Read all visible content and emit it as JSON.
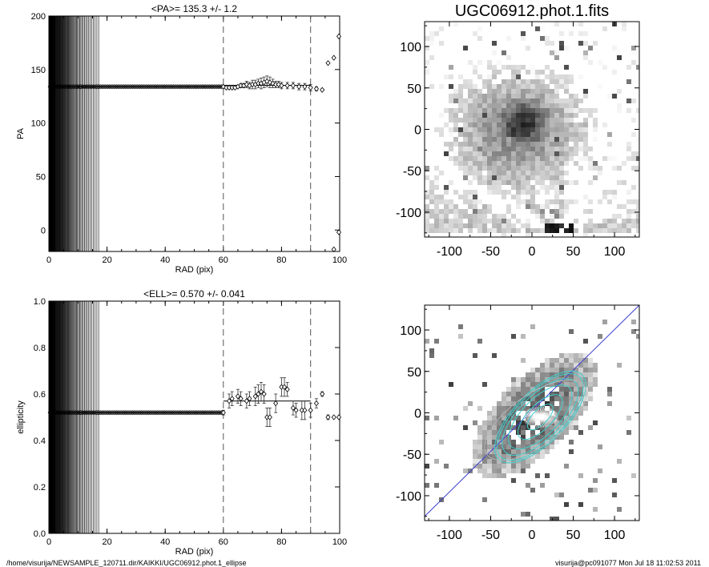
{
  "footer": {
    "path": "/home/visurija/NEWSAMPLE_120711.dir/KAIKKI/UGC06912.phot.1_ellipse",
    "user_stamp": "visurija@pc091077  Mon Jul 18 11:02:53 2011"
  },
  "chart_data": [
    {
      "id": "pa-profile",
      "type": "scatter",
      "title": "<PA>= 135.3 +/-   1.2",
      "xlabel": "RAD (pix)",
      "ylabel": "PA",
      "xlim": [
        0,
        100
      ],
      "ylim": [
        -20,
        200
      ],
      "xticks": [
        0,
        20,
        40,
        60,
        80,
        100
      ],
      "yticks": [
        0,
        50,
        100,
        150,
        200
      ],
      "mean_value": 135.3,
      "mean_line_x": [
        60,
        90
      ],
      "dashed_lines_x": [
        60,
        90
      ],
      "inner_constant": {
        "value": 134,
        "x_from": 0,
        "x_to": 60
      },
      "points": [
        {
          "x": 60,
          "y": 134,
          "err": 1
        },
        {
          "x": 61,
          "y": 133,
          "err": 1
        },
        {
          "x": 62,
          "y": 133,
          "err": 1
        },
        {
          "x": 63,
          "y": 133,
          "err": 1
        },
        {
          "x": 64,
          "y": 133,
          "err": 1
        },
        {
          "x": 65,
          "y": 134,
          "err": 1
        },
        {
          "x": 66,
          "y": 135,
          "err": 2
        },
        {
          "x": 67,
          "y": 135,
          "err": 2
        },
        {
          "x": 68,
          "y": 136,
          "err": 3
        },
        {
          "x": 69,
          "y": 135,
          "err": 3
        },
        {
          "x": 70,
          "y": 136,
          "err": 4
        },
        {
          "x": 71,
          "y": 136,
          "err": 4
        },
        {
          "x": 72,
          "y": 137,
          "err": 4
        },
        {
          "x": 73,
          "y": 137,
          "err": 5
        },
        {
          "x": 74,
          "y": 138,
          "err": 5
        },
        {
          "x": 75,
          "y": 139,
          "err": 5
        },
        {
          "x": 76,
          "y": 138,
          "err": 5
        },
        {
          "x": 77,
          "y": 137,
          "err": 4
        },
        {
          "x": 78,
          "y": 136,
          "err": 3
        },
        {
          "x": 79,
          "y": 136,
          "err": 3
        },
        {
          "x": 80,
          "y": 135,
          "err": 3
        },
        {
          "x": 82,
          "y": 135,
          "err": 3
        },
        {
          "x": 84,
          "y": 135,
          "err": 3
        },
        {
          "x": 86,
          "y": 134,
          "err": 3
        },
        {
          "x": 88,
          "y": 134,
          "err": 3
        },
        {
          "x": 90,
          "y": 133,
          "err": 3
        },
        {
          "x": 92,
          "y": 132,
          "err": 2
        },
        {
          "x": 94,
          "y": 131,
          "err": 1
        },
        {
          "x": 96,
          "y": 156,
          "err": 0
        },
        {
          "x": 98,
          "y": 161,
          "err": 0
        },
        {
          "x": 100,
          "y": 181,
          "err": 0
        },
        {
          "x": 98,
          "y": -18,
          "err": 0
        },
        {
          "x": 100,
          "y": -2,
          "err": 0
        }
      ]
    },
    {
      "id": "ellipticity-profile",
      "type": "scatter",
      "title": "<ELL>= 0.570 +/-  0.041",
      "xlabel": "RAD (pix)",
      "ylabel": "ellipticity",
      "xlim": [
        0,
        100
      ],
      "ylim": [
        0.0,
        1.0
      ],
      "xticks": [
        0,
        20,
        40,
        60,
        80,
        100
      ],
      "yticks": [
        0.0,
        0.2,
        0.4,
        0.6,
        0.8,
        1.0
      ],
      "mean_value": 0.57,
      "mean_line_x": [
        60,
        90
      ],
      "dashed_lines_x": [
        60,
        90
      ],
      "inner_constant": {
        "value": 0.52,
        "x_from": 0,
        "x_to": 60
      },
      "points": [
        {
          "x": 60,
          "y": 0.52,
          "err": 0.01
        },
        {
          "x": 62,
          "y": 0.57,
          "err": 0.03
        },
        {
          "x": 63,
          "y": 0.58,
          "err": 0.03
        },
        {
          "x": 65,
          "y": 0.59,
          "err": 0.03
        },
        {
          "x": 66,
          "y": 0.58,
          "err": 0.03
        },
        {
          "x": 68,
          "y": 0.57,
          "err": 0.03
        },
        {
          "x": 69,
          "y": 0.58,
          "err": 0.03
        },
        {
          "x": 71,
          "y": 0.59,
          "err": 0.04
        },
        {
          "x": 72,
          "y": 0.6,
          "err": 0.04
        },
        {
          "x": 73,
          "y": 0.61,
          "err": 0.04
        },
        {
          "x": 74,
          "y": 0.6,
          "err": 0.04
        },
        {
          "x": 75,
          "y": 0.5,
          "err": 0.04
        },
        {
          "x": 76,
          "y": 0.5,
          "err": 0.04
        },
        {
          "x": 78,
          "y": 0.56,
          "err": 0.04
        },
        {
          "x": 80,
          "y": 0.63,
          "err": 0.04
        },
        {
          "x": 81,
          "y": 0.63,
          "err": 0.04
        },
        {
          "x": 82,
          "y": 0.62,
          "err": 0.03
        },
        {
          "x": 84,
          "y": 0.54,
          "err": 0.03
        },
        {
          "x": 85,
          "y": 0.53,
          "err": 0.03
        },
        {
          "x": 87,
          "y": 0.53,
          "err": 0.04
        },
        {
          "x": 88,
          "y": 0.53,
          "err": 0.04
        },
        {
          "x": 90,
          "y": 0.53,
          "err": 0.03
        },
        {
          "x": 92,
          "y": 0.56,
          "err": 0.02
        },
        {
          "x": 94,
          "y": 0.6,
          "err": 0.01
        },
        {
          "x": 96,
          "y": 0.5,
          "err": 0.01
        },
        {
          "x": 98,
          "y": 0.5,
          "err": 0.0
        },
        {
          "x": 100,
          "y": 0.5,
          "err": 0.0
        }
      ]
    },
    {
      "id": "galaxy-image",
      "type": "heatmap",
      "title": "UGC06912.phot.1.fits",
      "xlim": [
        -130,
        130
      ],
      "ylim": [
        -130,
        130
      ],
      "xticks": [
        -100,
        -50,
        0,
        50,
        100
      ],
      "yticks": [
        -100,
        -50,
        0,
        50,
        100
      ],
      "colormap": "inverted-gray"
    },
    {
      "id": "galaxy-ellipse-fit",
      "type": "heatmap",
      "xlim": [
        -130,
        130
      ],
      "ylim": [
        -130,
        130
      ],
      "xticks": [
        -100,
        -50,
        0,
        50,
        100
      ],
      "yticks": [
        -100,
        -50,
        0,
        50,
        100
      ],
      "colormap": "inverted-gray",
      "major_axis_line_color": "#3a3ad0",
      "ellipse_color": "#40d0d0",
      "ellipse_fit": {
        "position_angle": 135.3,
        "ellipticity": 0.57
      }
    }
  ]
}
